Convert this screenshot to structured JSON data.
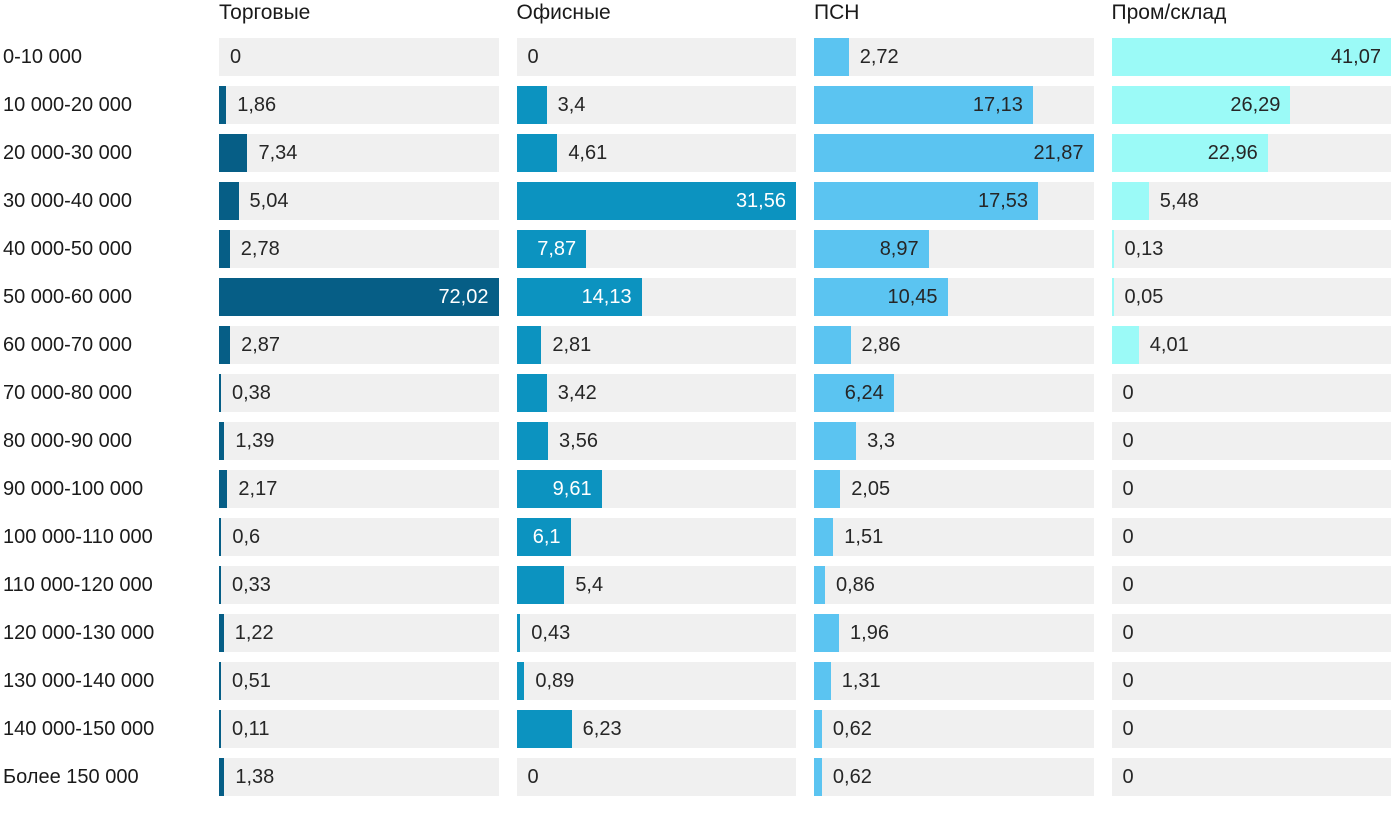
{
  "chart_data": {
    "type": "bar",
    "orientation": "horizontal",
    "title": "",
    "xlabel": "",
    "ylabel": "",
    "grid": false,
    "legend_position": "column-headers",
    "track_color": "#f0f0f0",
    "row_label_color": "#1a1a1a",
    "outside_value_color": "#262626",
    "categories": [
      "0-10 000",
      "10 000-20 000",
      "20 000-30 000",
      "30 000-40 000",
      "40 000-50 000",
      "50 000-60 000",
      "60 000-70 000",
      "70 000-80 000",
      "80 000-90 000",
      "90 000-100 000",
      "100 000-110 000",
      "110 000-120 000",
      "120 000-130 000",
      "130 000-140 000",
      "140 000-150 000",
      "Более 150 000"
    ],
    "series": [
      {
        "name": "Торговые",
        "color": "#065e86",
        "inside_label_color": "#ffffff",
        "axis_max": 72.02,
        "values": [
          0,
          1.86,
          7.34,
          5.04,
          2.78,
          72.02,
          2.87,
          0.38,
          1.39,
          2.17,
          0.6,
          0.33,
          1.22,
          0.51,
          0.11,
          1.38
        ],
        "labels": [
          "0",
          "1,86",
          "7,34",
          "5,04",
          "2,78",
          "72,02",
          "2,87",
          "0,38",
          "1,39",
          "2,17",
          "0,6",
          "0,33",
          "1,22",
          "0,51",
          "0,11",
          "1,38"
        ],
        "label_inside": [
          false,
          false,
          false,
          false,
          false,
          true,
          false,
          false,
          false,
          false,
          false,
          false,
          false,
          false,
          false,
          false
        ]
      },
      {
        "name": "Офисные",
        "color": "#0c93c0",
        "inside_label_color": "#ffffff",
        "axis_max": 31.56,
        "values": [
          0,
          3.4,
          4.61,
          31.56,
          7.87,
          14.13,
          2.81,
          3.42,
          3.56,
          9.61,
          6.1,
          5.4,
          0.43,
          0.89,
          6.23,
          0
        ],
        "labels": [
          "0",
          "3,4",
          "4,61",
          "31,56",
          "7,87",
          "14,13",
          "2,81",
          "3,42",
          "3,56",
          "9,61",
          "6,1",
          "5,4",
          "0,43",
          "0,89",
          "6,23",
          "0"
        ],
        "label_inside": [
          false,
          false,
          false,
          true,
          true,
          true,
          false,
          false,
          false,
          true,
          true,
          false,
          false,
          false,
          false,
          false
        ]
      },
      {
        "name": "ПСН",
        "color": "#5bc4f1",
        "inside_label_color": "#262626",
        "axis_max": 21.87,
        "values": [
          2.72,
          17.13,
          21.87,
          17.53,
          8.97,
          10.45,
          2.86,
          6.24,
          3.3,
          2.05,
          1.51,
          0.86,
          1.96,
          1.31,
          0.62,
          0.62
        ],
        "labels": [
          "2,72",
          "17,13",
          "21,87",
          "17,53",
          "8,97",
          "10,45",
          "2,86",
          "6,24",
          "3,3",
          "2,05",
          "1,51",
          "0,86",
          "1,96",
          "1,31",
          "0,62",
          "0,62"
        ],
        "label_inside": [
          false,
          true,
          true,
          true,
          true,
          true,
          false,
          true,
          false,
          false,
          false,
          false,
          false,
          false,
          false,
          false
        ]
      },
      {
        "name": "Пром/склад",
        "color": "#9bfaf7",
        "inside_label_color": "#262626",
        "axis_max": 41.07,
        "values": [
          41.07,
          26.29,
          22.96,
          5.48,
          0.13,
          0.05,
          4.01,
          0,
          0,
          0,
          0,
          0,
          0,
          0,
          0,
          0
        ],
        "labels": [
          "41,07",
          "26,29",
          "22,96",
          "5,48",
          "0,13",
          "0,05",
          "4,01",
          "0",
          "0",
          "0",
          "0",
          "0",
          "0",
          "0",
          "0",
          "0"
        ],
        "label_inside": [
          true,
          true,
          true,
          false,
          false,
          false,
          false,
          false,
          false,
          false,
          false,
          false,
          false,
          false,
          false,
          false
        ]
      }
    ]
  }
}
